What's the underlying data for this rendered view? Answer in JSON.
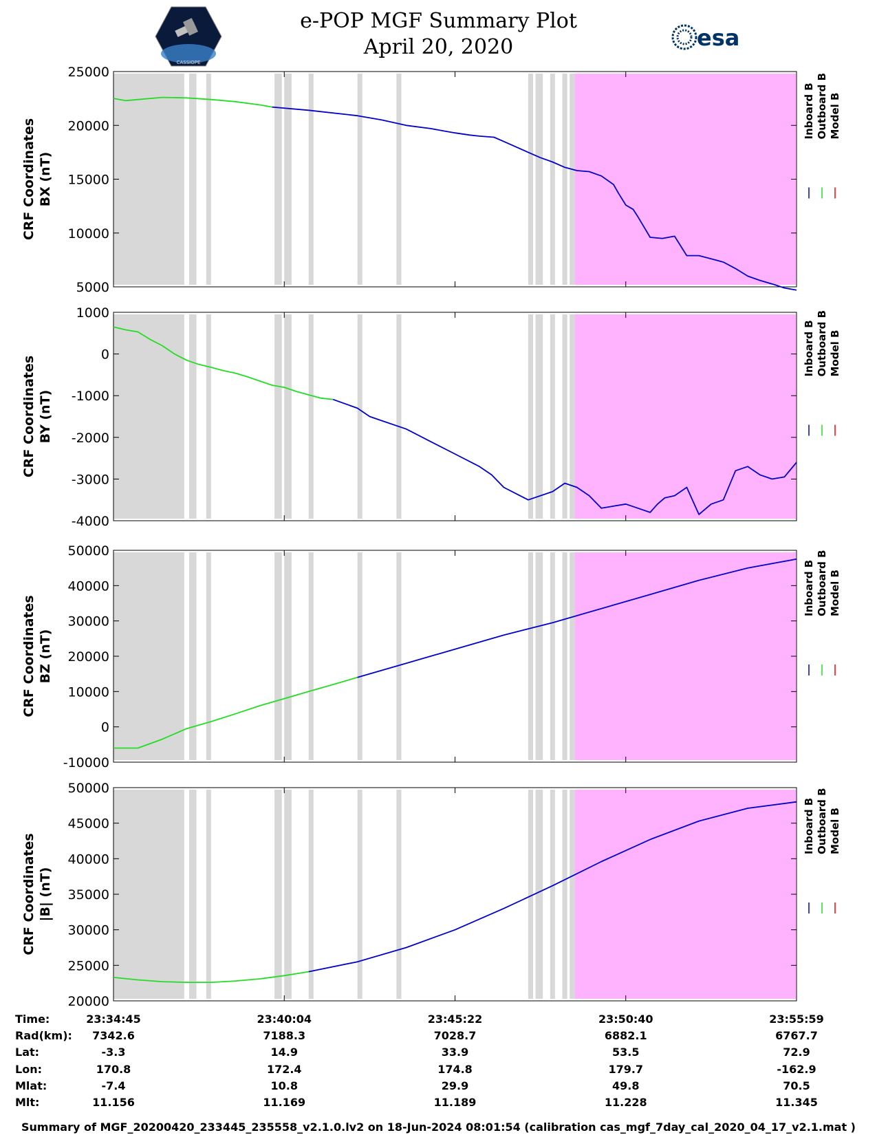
{
  "header": {
    "title_line1": "e-POP MGF Summary Plot",
    "title_line2": "April 20, 2020",
    "logo_left_text": "CASSIOPE",
    "logo_right_text": "esa"
  },
  "colors": {
    "inboard": "#0000cc",
    "outboard": "#22dd22",
    "model": "#ff0000",
    "gray_band": "#d8d8d8",
    "pink_region": "#ffb3ff"
  },
  "legend": [
    "Inboard B",
    "Outboard B",
    "Model B"
  ],
  "chart_data": [
    {
      "type": "line",
      "ylabel_line1": "CRF Coordinates",
      "ylabel_line2": "BX (nT)",
      "ylim": [
        5000,
        25000
      ],
      "yticks": [
        5000,
        10000,
        15000,
        20000,
        25000
      ],
      "ytick_labels": [
        "5000",
        "10000",
        "15000",
        "20000",
        "25000"
      ],
      "outboard": {
        "t": [
          0,
          0.5,
          1,
          2,
          3,
          4,
          5,
          6,
          6.5
        ],
        "v": [
          22500,
          22300,
          22400,
          22600,
          22550,
          22400,
          22200,
          21900,
          21700
        ]
      },
      "inboard": {
        "t": [
          6.5,
          8,
          10,
          11,
          12,
          13,
          13.5,
          14,
          14.6,
          15,
          15.6,
          16,
          17,
          17.5,
          18,
          18.5,
          19,
          19.5,
          20,
          20.5,
          20.7,
          21,
          21.3,
          21.5,
          22,
          22.5,
          23,
          23.5,
          24,
          24.5,
          25,
          25.5,
          26,
          26.5,
          27.1,
          27.5,
          28
        ],
        "v": [
          21700,
          21400,
          20900,
          20500,
          20000,
          19700,
          19500,
          19300,
          19100,
          19000,
          18900,
          18500,
          17500,
          17000,
          16600,
          16100,
          15800,
          15700,
          15300,
          14500,
          13700,
          12600,
          12200,
          11500,
          9600,
          9500,
          9700,
          7900,
          7900,
          7600,
          7300,
          6700,
          6000,
          5600,
          5200,
          4900,
          4700
        ]
      }
    },
    {
      "type": "line",
      "ylabel_line1": "CRF Coordinates",
      "ylabel_line2": "BY (nT)",
      "ylim": [
        -4000,
        1000
      ],
      "yticks": [
        -4000,
        -3000,
        -2000,
        -1000,
        0,
        1000
      ],
      "ytick_labels": [
        "-4000",
        "-3000",
        "-2000",
        "-1000",
        "0",
        "1000"
      ],
      "outboard": {
        "t": [
          0,
          0.5,
          1,
          1.5,
          2,
          2.5,
          3,
          3.5,
          4,
          4.5,
          5,
          5.5,
          6,
          6.5,
          7,
          7.5,
          8,
          8.5,
          9
        ],
        "v": [
          650,
          580,
          530,
          350,
          200,
          0,
          -150,
          -250,
          -320,
          -400,
          -460,
          -550,
          -650,
          -750,
          -800,
          -900,
          -980,
          -1060,
          -1090
        ]
      },
      "inboard": {
        "t": [
          9,
          10,
          10.5,
          11,
          12,
          13,
          14,
          15,
          15.5,
          16,
          17,
          18,
          18.5,
          19,
          19.5,
          20,
          20.5,
          21,
          21.5,
          22,
          22.3,
          22.6,
          23,
          23.5,
          24,
          24.5,
          25,
          25.5,
          26,
          26.5,
          27,
          27.5,
          28
        ],
        "v": [
          -1090,
          -1300,
          -1500,
          -1600,
          -1800,
          -2100,
          -2400,
          -2700,
          -2900,
          -3200,
          -3500,
          -3300,
          -3100,
          -3200,
          -3400,
          -3700,
          -3650,
          -3600,
          -3700,
          -3800,
          -3600,
          -3450,
          -3400,
          -3200,
          -3850,
          -3600,
          -3500,
          -2800,
          -2700,
          -2900,
          -3000,
          -2950,
          -2600
        ]
      }
    },
    {
      "type": "line",
      "ylabel_line1": "CRF Coordinates",
      "ylabel_line2": "BZ (nT)",
      "ylim": [
        -10000,
        50000
      ],
      "yticks": [
        -10000,
        0,
        10000,
        20000,
        30000,
        40000,
        50000
      ],
      "ytick_labels": [
        "-10000",
        "0",
        "10000",
        "20000",
        "30000",
        "40000",
        "50000"
      ],
      "outboard": {
        "t": [
          0,
          1,
          2,
          3,
          4,
          5,
          6,
          7,
          8,
          9,
          10
        ],
        "v": [
          -6000,
          -6000,
          -3500,
          -500,
          1500,
          3700,
          6000,
          8000,
          10000,
          12000,
          14000
        ]
      },
      "inboard": {
        "t": [
          10,
          12,
          14,
          16,
          18,
          20,
          22,
          24,
          26,
          28
        ],
        "v": [
          14000,
          18000,
          22000,
          26000,
          29500,
          33500,
          37500,
          41500,
          45000,
          47500
        ]
      }
    },
    {
      "type": "line",
      "ylabel_line1": "CRF Coordinates",
      "ylabel_line2": "|B| (nT)",
      "ylim": [
        20000,
        50000
      ],
      "yticks": [
        20000,
        25000,
        30000,
        35000,
        40000,
        45000,
        50000
      ],
      "ytick_labels": [
        "20000",
        "25000",
        "30000",
        "35000",
        "40000",
        "45000",
        "50000"
      ],
      "outboard": {
        "t": [
          0,
          1,
          2,
          3,
          4,
          5,
          6,
          7,
          8
        ],
        "v": [
          23300,
          22950,
          22700,
          22600,
          22600,
          22800,
          23100,
          23550,
          24100
        ]
      },
      "inboard": {
        "t": [
          8,
          10,
          12,
          14,
          16,
          18,
          20,
          22,
          24,
          26,
          28
        ],
        "v": [
          24100,
          25500,
          27500,
          30000,
          33000,
          36200,
          39600,
          42700,
          45300,
          47100,
          48000
        ]
      }
    }
  ],
  "time_axis": {
    "tmin": 0,
    "tmax": 28
  },
  "gray_bands": [
    [
      0,
      2.9
    ],
    [
      3.1,
      3.4
    ],
    [
      3.8,
      4.0
    ],
    [
      6.6,
      6.9
    ],
    [
      7.0,
      7.3
    ],
    [
      8.0,
      8.2
    ],
    [
      10.0,
      10.2
    ],
    [
      11.6,
      11.8
    ],
    [
      17.0,
      17.2
    ],
    [
      17.3,
      17.6
    ],
    [
      17.9,
      18.1
    ],
    [
      18.4,
      18.6
    ],
    [
      18.7,
      18.9
    ]
  ],
  "pink_region": [
    18.9,
    28
  ],
  "info_table": {
    "row_labels": [
      "Time:",
      "Rad(km):",
      "Lat:",
      "Lon:",
      "Mlat:",
      "Mlt:"
    ],
    "columns": [
      [
        "23:34:45",
        "7342.6",
        "-3.3",
        "170.8",
        "-7.4",
        "11.156"
      ],
      [
        "23:40:04",
        "7188.3",
        "14.9",
        "172.4",
        "10.8",
        "11.169"
      ],
      [
        "23:45:22",
        "7028.7",
        "33.9",
        "174.8",
        "29.9",
        "11.189"
      ],
      [
        "23:50:40",
        "6882.1",
        "53.5",
        "179.7",
        "49.8",
        "11.228"
      ],
      [
        "23:55:59",
        "6767.7",
        "72.9",
        "-162.9",
        "70.5",
        "11.345"
      ]
    ]
  },
  "footer": "Summary of MGF_20200420_233445_235558_v2.1.0.lv2 on 18-Jun-2024 08:01:54 (calibration cas_mgf_7day_cal_2020_04_17_v2.1.mat )"
}
